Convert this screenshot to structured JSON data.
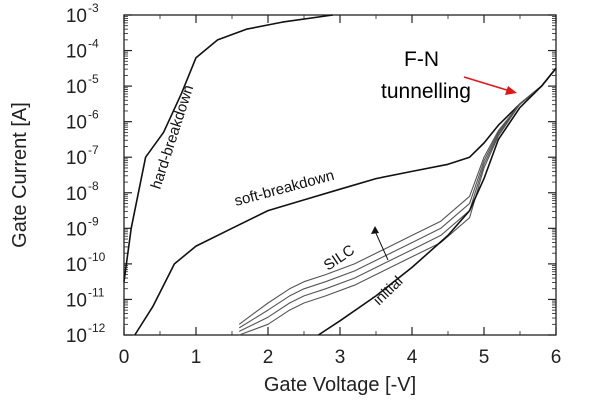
{
  "chart_data": {
    "type": "line",
    "xlabel": "Gate Voltage [-V]",
    "ylabel": "Gate Current [A]",
    "xlim": [
      0,
      6
    ],
    "ylim_log10": [
      -12,
      -3
    ],
    "y_scale": "log",
    "x_ticks": [
      "0",
      "1",
      "2",
      "3",
      "4",
      "5",
      "6"
    ],
    "y_ticks": [
      {
        "base": "10",
        "exp": "-3"
      },
      {
        "base": "10",
        "exp": "-4"
      },
      {
        "base": "10",
        "exp": "-5"
      },
      {
        "base": "10",
        "exp": "-6"
      },
      {
        "base": "10",
        "exp": "-7"
      },
      {
        "base": "10",
        "exp": "-8"
      },
      {
        "base": "10",
        "exp": "-9"
      },
      {
        "base": "10",
        "exp": "-10"
      },
      {
        "base": "10",
        "exp": "-11"
      },
      {
        "base": "10",
        "exp": "-12"
      }
    ],
    "series": [
      {
        "name": "hard-breakdown",
        "x": [
          -0.05,
          0.1,
          0.3,
          0.55,
          0.8,
          1.0,
          1.3,
          1.7,
          2.2,
          2.9
        ],
        "y_log10": [
          -10.5,
          -9.0,
          -7.0,
          -6.3,
          -5.2,
          -4.2,
          -3.7,
          -3.4,
          -3.2,
          -3.0
        ]
      },
      {
        "name": "soft-breakdown",
        "x": [
          0.15,
          0.4,
          0.7,
          1.0,
          1.5,
          2.0,
          2.5,
          3.0,
          3.5,
          4.0,
          4.5,
          4.8,
          5.0,
          5.2,
          5.5,
          5.8,
          6.0
        ],
        "y_log10": [
          -12.0,
          -11.2,
          -10.0,
          -9.5,
          -9.0,
          -8.5,
          -8.2,
          -7.9,
          -7.6,
          -7.4,
          -7.2,
          -7.0,
          -6.6,
          -6.1,
          -5.5,
          -5.0,
          -4.5
        ]
      },
      {
        "name": "SILC",
        "x": [
          1.6,
          2.0,
          2.3,
          2.5,
          2.8,
          3.2,
          3.6,
          4.0,
          4.4,
          4.8,
          5.0,
          5.2,
          5.5,
          5.8,
          6.0
        ],
        "y_log10": [
          -12.0,
          -11.7,
          -11.3,
          -11.1,
          -10.9,
          -10.6,
          -10.2,
          -9.8,
          -9.4,
          -8.7,
          -7.3,
          -6.4,
          -5.5,
          -5.0,
          -4.5
        ]
      },
      {
        "name": "SILC",
        "x": [
          1.6,
          2.0,
          2.3,
          2.5,
          2.8,
          3.2,
          3.6,
          4.0,
          4.4,
          4.8,
          5.0,
          5.2,
          5.5,
          5.8,
          6.0
        ],
        "y_log10": [
          -11.9,
          -11.5,
          -11.1,
          -10.9,
          -10.7,
          -10.4,
          -10.0,
          -9.6,
          -9.2,
          -8.5,
          -7.2,
          -6.35,
          -5.5,
          -5.0,
          -4.5
        ]
      },
      {
        "name": "SILC",
        "x": [
          1.6,
          2.0,
          2.3,
          2.5,
          2.8,
          3.2,
          3.6,
          4.0,
          4.4,
          4.8,
          5.0,
          5.2,
          5.5,
          5.8,
          6.0
        ],
        "y_log10": [
          -11.8,
          -11.3,
          -10.9,
          -10.7,
          -10.5,
          -10.2,
          -9.8,
          -9.4,
          -9.0,
          -8.3,
          -7.1,
          -6.3,
          -5.5,
          -5.0,
          -4.5
        ]
      },
      {
        "name": "SILC",
        "x": [
          1.6,
          2.0,
          2.3,
          2.5,
          2.8,
          3.2,
          3.6,
          4.0,
          4.4,
          4.8,
          5.0,
          5.2,
          5.5,
          5.8,
          6.0
        ],
        "y_log10": [
          -11.7,
          -11.1,
          -10.7,
          -10.5,
          -10.3,
          -10.0,
          -9.6,
          -9.2,
          -8.8,
          -8.1,
          -7.0,
          -6.25,
          -5.5,
          -5.0,
          -4.5
        ]
      },
      {
        "name": "initial",
        "x": [
          2.7,
          3.0,
          3.5,
          4.0,
          4.5,
          4.8,
          5.0,
          5.2,
          5.5,
          5.8,
          6.0
        ],
        "y_log10": [
          -12.0,
          -11.6,
          -10.9,
          -10.1,
          -9.2,
          -8.5,
          -7.6,
          -6.5,
          -5.6,
          -5.0,
          -4.5
        ]
      }
    ],
    "annotations": [
      {
        "text": "hard-breakdown",
        "color": "#111111"
      },
      {
        "text": "soft-breakdown",
        "color": "#111111"
      },
      {
        "text": "SILC",
        "color": "#111111"
      },
      {
        "text": "initial",
        "color": "#111111"
      },
      {
        "text": "F-N",
        "color": "#e3141a"
      },
      {
        "text": "tunnelling",
        "color": "#e3141a"
      }
    ],
    "grid": false
  }
}
